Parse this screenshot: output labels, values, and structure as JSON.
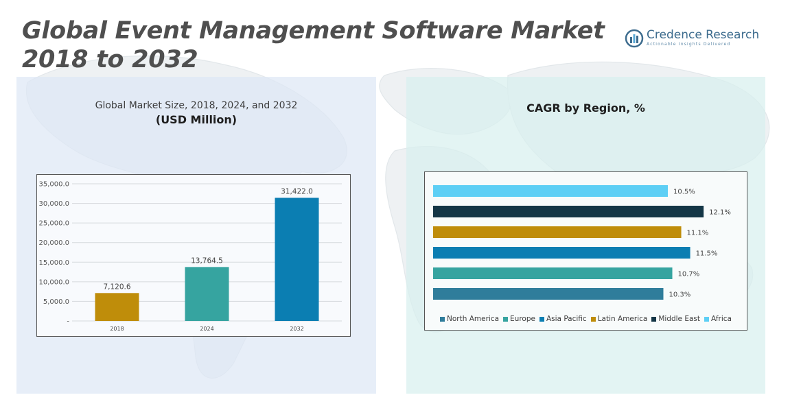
{
  "title": "Global Event Management Software Market 2018 to 2032",
  "brand": {
    "name": "Credence Research",
    "tagline": "Actionable Insights Delivered"
  },
  "colors": {
    "north_america": "#2f7d9b",
    "europe": "#36a4a0",
    "asia_pacific": "#0b7eb2",
    "latin_america": "#bf8d0a",
    "middle_east": "#143646",
    "africa": "#5dcff5"
  },
  "chart_data": [
    {
      "type": "bar",
      "title": "Global Market Size, 2018, 2024, and 2032",
      "subtitle": "(USD Million)",
      "categories": [
        "2018",
        "2024",
        "2032"
      ],
      "values": [
        7120.6,
        13764.5,
        31422.0
      ],
      "value_labels": [
        "7,120.6",
        "13,764.5",
        "31,422.0"
      ],
      "bar_colors": [
        "#bf8d0a",
        "#36a4a0",
        "#0b7eb2"
      ],
      "ylim": [
        0,
        35000
      ],
      "yticks": [
        0,
        5000,
        10000,
        15000,
        20000,
        25000,
        30000,
        35000
      ],
      "ytick_labels": [
        "-",
        "5,000.0",
        "10,000.0",
        "15,000.0",
        "20,000.0",
        "25,000.0",
        "30,000.0",
        "35,000.0"
      ],
      "xlabel": "",
      "ylabel": "",
      "grid": true
    },
    {
      "type": "bar",
      "orientation": "horizontal",
      "title": "CAGR by Region, %",
      "categories": [
        "Africa",
        "Middle East",
        "Latin America",
        "Asia Pacific",
        "Europe",
        "North America"
      ],
      "values": [
        10.5,
        12.1,
        11.1,
        11.5,
        10.7,
        10.3
      ],
      "value_labels": [
        "10.5%",
        "12.1%",
        "11.1%",
        "11.5%",
        "10.7%",
        "10.3%"
      ],
      "bar_colors": [
        "#5dcff5",
        "#143646",
        "#bf8d0a",
        "#0b7eb2",
        "#36a4a0",
        "#2f7d9b"
      ],
      "xlim": [
        0,
        14
      ],
      "legend": [
        "North America",
        "Europe",
        "Asia Pacific",
        "Latin America",
        "Middle East",
        "Africa"
      ],
      "legend_colors": [
        "#2f7d9b",
        "#36a4a0",
        "#0b7eb2",
        "#bf8d0a",
        "#143646",
        "#5dcff5"
      ],
      "legend_position": "bottom",
      "grid": false
    }
  ]
}
